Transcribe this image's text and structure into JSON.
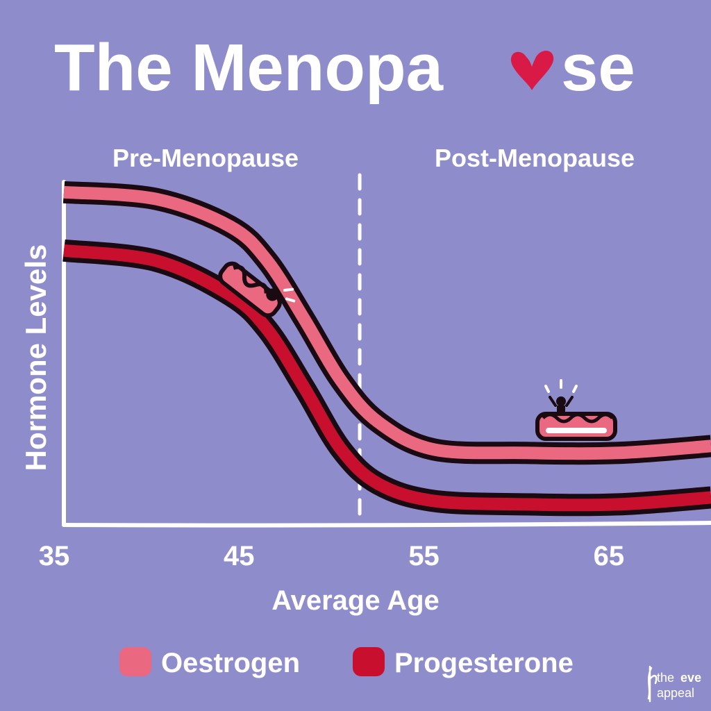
{
  "background": "#8f8ccb",
  "title": {
    "text_before": "The Menopa",
    "text_after": "se",
    "heart_color": "#d91a46"
  },
  "brand": {
    "name_line1": "the",
    "name_line1_bold": "eve",
    "name_line2": "appeal"
  },
  "chart_data": {
    "type": "line",
    "title": "The Menopause",
    "xlabel": "Average Age",
    "ylabel": "Hormone Levels",
    "xlim": [
      35,
      70
    ],
    "ylim": [
      0,
      100
    ],
    "x_ticks": [
      "35",
      "45",
      "55",
      "65"
    ],
    "x_tick_values": [
      35,
      45,
      55,
      65
    ],
    "regions": [
      {
        "label": "Pre-Menopause",
        "from": 35,
        "to": 51
      },
      {
        "label": "Post-Menopause",
        "from": 51,
        "to": 70
      }
    ],
    "divider_x": 51,
    "series": [
      {
        "name": "Oestrogen",
        "color": "#eb6881",
        "x": [
          35,
          40,
          44,
          46,
          48,
          50,
          52,
          55,
          60,
          65,
          70
        ],
        "values": [
          97,
          95,
          87,
          77,
          60,
          42,
          30,
          22,
          21,
          21,
          23
        ]
      },
      {
        "name": "Progesterone",
        "color": "#c8102e",
        "x": [
          35,
          40,
          44,
          46,
          48,
          50,
          52,
          55,
          60,
          65,
          70
        ],
        "values": [
          80,
          77,
          67,
          57,
          40,
          22,
          12,
          7,
          6,
          6,
          8
        ]
      }
    ],
    "legend_position": "bottom-center",
    "grid": false
  }
}
